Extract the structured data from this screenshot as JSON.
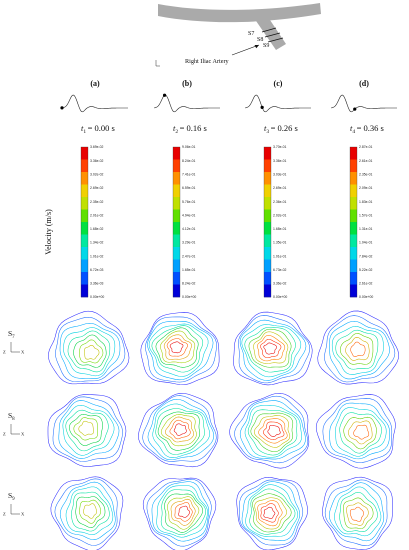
{
  "diagram": {
    "section_labels": [
      "S7",
      "S8",
      "S9"
    ],
    "artery_label": "Right Iliac Artery"
  },
  "panels": [
    {
      "id": "(a)",
      "time_sub": "1",
      "time_value": "= 0.00 s",
      "marker_phase": 0.0
    },
    {
      "id": "(b)",
      "time_sub": "2",
      "time_value": "= 0.16 s",
      "marker_phase": 0.16
    },
    {
      "id": "(c)",
      "time_sub": "3",
      "time_value": "= 0.26 s",
      "marker_phase": 0.26
    },
    {
      "id": "(d)",
      "time_sub": "4",
      "time_value": "= 0.36 s",
      "marker_phase": 0.36
    }
  ],
  "velocity_axis_label": "Velocity (m/s)",
  "colorbars": [
    {
      "ticks": [
        "3.69e-02",
        "3.36e-02",
        "3.02e-02",
        "2.69e-02",
        "2.35e-02",
        "2.01e-02",
        "1.68e-02",
        "1.34e-02",
        "1.01e-02",
        "6.72e-03",
        "3.36e-03",
        "0.00e+00"
      ]
    },
    {
      "ticks": [
        "9.06e-01",
        "8.24e-01",
        "7.41e-01",
        "6.59e-01",
        "5.76e-01",
        "4.94e-01",
        "4.12e-01",
        "3.29e-01",
        "2.47e-01",
        "1.65e-01",
        "8.24e-02",
        "0.00e+00"
      ]
    },
    {
      "ticks": [
        "3.70e-01",
        "3.36e-01",
        "3.03e-01",
        "2.69e-01",
        "2.36e-01",
        "2.02e-01",
        "1.68e-01",
        "1.35e-01",
        "1.01e-01",
        "6.73e-02",
        "3.36e-02",
        "0.00e+00"
      ]
    },
    {
      "ticks": [
        "2.87e-01",
        "2.61e-01",
        "2.35e-01",
        "2.09e-01",
        "1.83e-01",
        "1.57e-01",
        "1.31e-01",
        "1.04e-01",
        "7.84e-02",
        "5.22e-02",
        "2.61e-02",
        "0.00e+00"
      ]
    }
  ],
  "colormap": [
    "#0000d8",
    "#0050ff",
    "#00a0ff",
    "#00d8e8",
    "#00e8a0",
    "#00e040",
    "#60e000",
    "#c0e000",
    "#f0d000",
    "#ff9000",
    "#ff4000",
    "#e80000"
  ],
  "row_labels": [
    "S7",
    "S8",
    "S9"
  ],
  "axis_letters": {
    "vertical": "Z",
    "horizontal": "X"
  }
}
